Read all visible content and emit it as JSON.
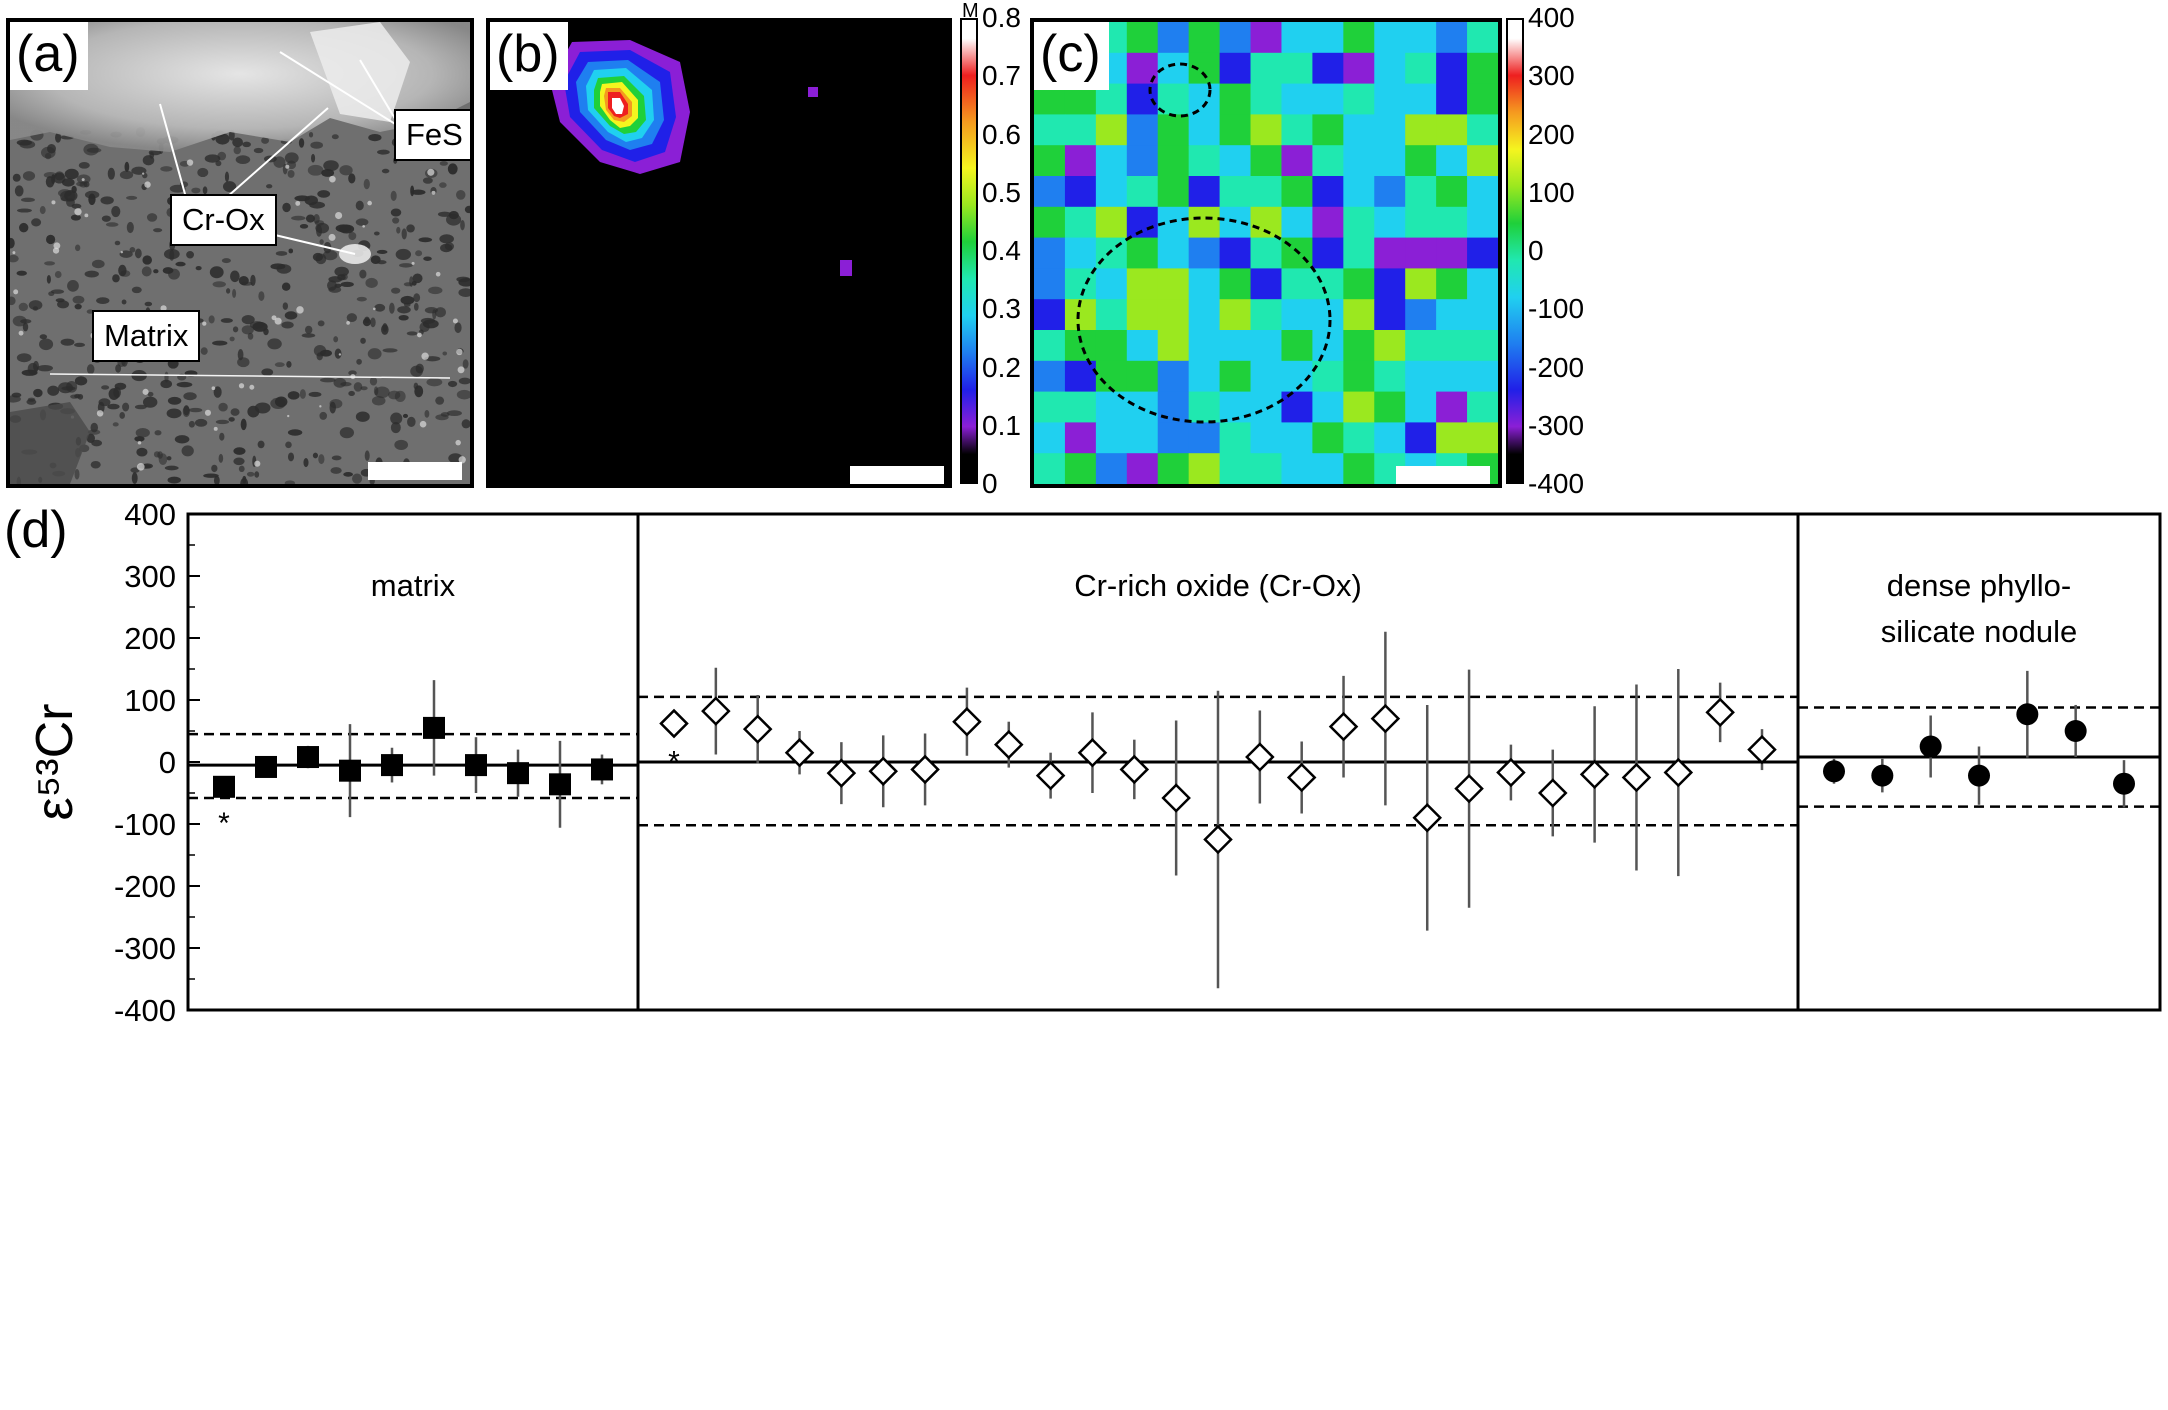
{
  "panel_a": {
    "letter": "(a)",
    "labels": {
      "fes": "FeS",
      "crox": "Cr-Ox",
      "matrix": "Matrix"
    }
  },
  "panel_b": {
    "letter": "(b)",
    "colorbar": {
      "unit": "M",
      "ticks": [
        "0.8",
        "0.7",
        "0.6",
        "0.5",
        "0.4",
        "0.3",
        "0.2",
        "0.1",
        "0"
      ]
    }
  },
  "panel_c": {
    "letter": "(c)",
    "colorbar": {
      "ticks": [
        "400",
        "300",
        "200",
        "100",
        "0",
        "-100",
        "-200",
        "-300",
        "-400"
      ]
    }
  },
  "panel_d": {
    "letter": "(d)"
  },
  "colors": {
    "background": "#ffffff",
    "ink": "#000000",
    "errorbar": "#555555",
    "jet": [
      "#000000",
      "#8b1fd6",
      "#2020e8",
      "#1f7ff0",
      "#20d0f0",
      "#20e8b0",
      "#1fd03a",
      "#9be81f",
      "#f5f51f",
      "#f59a1f",
      "#ee1f1f",
      "#ffffff"
    ]
  },
  "chart_data": {
    "type": "scatter",
    "ylabel": "ε⁵³Cr",
    "ylim": [
      -400,
      400
    ],
    "yticks": [
      "400",
      "300",
      "200",
      "100",
      "0",
      "-100",
      "-200",
      "-300",
      "-400"
    ],
    "groups": [
      {
        "name": "matrix",
        "marker": "square-filled",
        "mean": -5,
        "band": [
          45,
          -58
        ],
        "points": [
          {
            "y": -40,
            "err": 0,
            "star": true
          },
          {
            "y": -8,
            "err": 0
          },
          {
            "y": 8,
            "err": 18
          },
          {
            "y": -14,
            "err": 75
          },
          {
            "y": -5,
            "err": 28
          },
          {
            "y": 55,
            "err": 77
          },
          {
            "y": -5,
            "err": 45
          },
          {
            "y": -18,
            "err": 38
          },
          {
            "y": -36,
            "err": 70
          },
          {
            "y": -12,
            "err": 24
          }
        ]
      },
      {
        "name": "Cr-rich oxide (Cr-Ox)",
        "marker": "diamond-open",
        "mean": 0,
        "band": [
          105,
          -102
        ],
        "points": [
          {
            "y": 62,
            "err": 0,
            "star": true
          },
          {
            "y": 82,
            "err": 70
          },
          {
            "y": 53,
            "err": 55
          },
          {
            "y": 15,
            "err": 35
          },
          {
            "y": -18,
            "err": 50
          },
          {
            "y": -15,
            "err": 58
          },
          {
            "y": -12,
            "err": 58
          },
          {
            "y": 65,
            "err": 55
          },
          {
            "y": 28,
            "err": 37
          },
          {
            "y": -22,
            "err": 37
          },
          {
            "y": 15,
            "err": 65
          },
          {
            "y": -12,
            "err": 48
          },
          {
            "y": -58,
            "err": 125
          },
          {
            "y": -125,
            "err": 240
          },
          {
            "y": 8,
            "err": 75
          },
          {
            "y": -25,
            "err": 58
          },
          {
            "y": 57,
            "err": 82
          },
          {
            "y": 70,
            "err": 140
          },
          {
            "y": -90,
            "err": 182
          },
          {
            "y": -43,
            "err": 192
          },
          {
            "y": -17,
            "err": 45
          },
          {
            "y": -50,
            "err": 70
          },
          {
            "y": -20,
            "err": 110
          },
          {
            "y": -25,
            "err": 150
          },
          {
            "y": -17,
            "err": 167
          },
          {
            "y": 80,
            "err": 48
          },
          {
            "y": 20,
            "err": 33
          }
        ]
      },
      {
        "name": "dense phyllo- silicate nodule",
        "label_lines": [
          "dense phyllo-",
          "silicate nodule"
        ],
        "marker": "circle-filled",
        "mean": 8,
        "band": [
          88,
          -72
        ],
        "points": [
          {
            "y": -15,
            "err": 20
          },
          {
            "y": -22,
            "err": 27
          },
          {
            "y": 25,
            "err": 50
          },
          {
            "y": -22,
            "err": 47
          },
          {
            "y": 77,
            "err": 70
          },
          {
            "y": 50,
            "err": 42
          },
          {
            "y": -35,
            "err": 38
          }
        ]
      }
    ]
  }
}
